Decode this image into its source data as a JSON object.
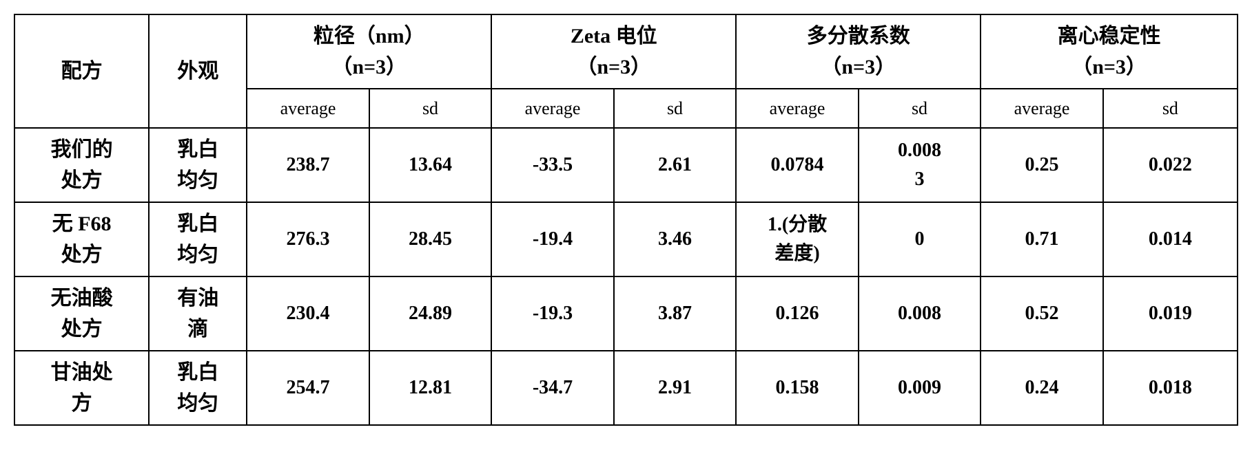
{
  "headers": {
    "formula": "配方",
    "appearance": "外观",
    "groups": [
      {
        "title": "粒径（nm）\n（n=3）",
        "sub": [
          "average",
          "sd"
        ]
      },
      {
        "title": "Zeta 电位\n（n=3）",
        "sub": [
          "average",
          "sd"
        ]
      },
      {
        "title": "多分散系数\n（n=3）",
        "sub": [
          "average",
          "sd"
        ]
      },
      {
        "title": "离心稳定性\n（n=3）",
        "sub": [
          "average",
          "sd"
        ]
      }
    ]
  },
  "rows": [
    {
      "formula": "我们的\n处方",
      "appearance": "乳白\n均匀",
      "values": [
        "238.7",
        "13.64",
        "-33.5",
        "2.61",
        "0.0784",
        "0.008\n3",
        "0.25",
        "0.022"
      ]
    },
    {
      "formula": "无 F68\n处方",
      "appearance": "乳白\n均匀",
      "values": [
        "276.3",
        "28.45",
        "-19.4",
        "3.46",
        "1.(分散\n差度)",
        "0",
        "0.71",
        "0.014"
      ]
    },
    {
      "formula": "无油酸\n处方",
      "appearance": "有油\n滴",
      "values": [
        "230.4",
        "24.89",
        "-19.3",
        "3.87",
        "0.126",
        "0.008",
        "0.52",
        "0.019"
      ]
    },
    {
      "formula": "甘油处\n方",
      "appearance": "乳白\n均匀",
      "values": [
        "254.7",
        "12.81",
        "-34.7",
        "2.91",
        "0.158",
        "0.009",
        "0.24",
        "0.018"
      ]
    }
  ],
  "styling": {
    "border_color": "#000000",
    "border_width": 2,
    "background_color": "#ffffff",
    "text_color": "#000000",
    "header_fontsize": 30,
    "subheader_fontsize": 26,
    "cell_fontsize": 28,
    "font_family": "SimSun, Times New Roman, serif",
    "font_weight": "bold",
    "column_widths_pct": [
      11,
      8,
      10,
      10,
      10,
      10,
      10,
      10,
      10,
      11
    ]
  }
}
